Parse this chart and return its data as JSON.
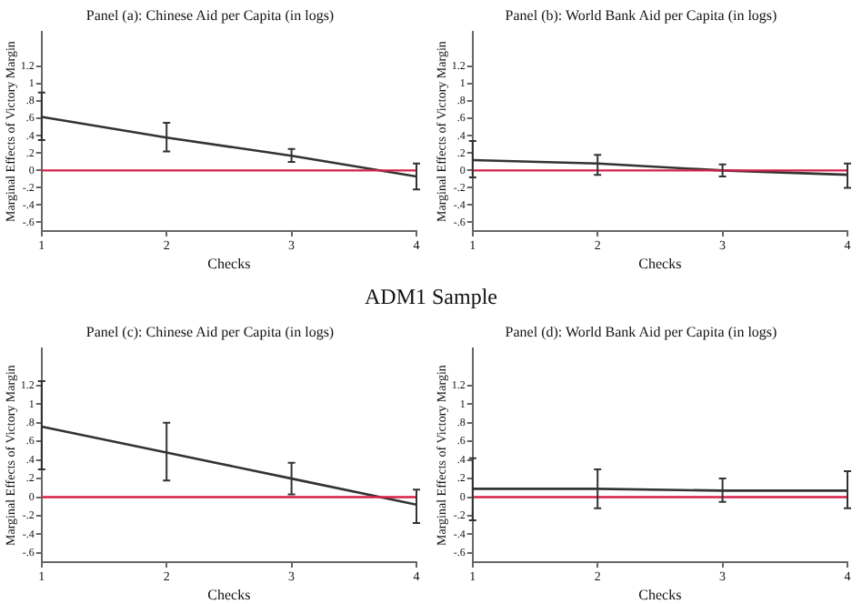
{
  "chart_data": [
    {
      "type": "line",
      "title": "Panel (a): Chinese Aid per Capita (in logs)",
      "xlabel": "Checks",
      "ylabel": "Marginal Effects of Victory Margin",
      "x": [
        1,
        2,
        3,
        4
      ],
      "xlim": [
        1,
        4
      ],
      "xticks": [
        1,
        2,
        3,
        4
      ],
      "ylim": [
        -0.7,
        1.6
      ],
      "yticks": [
        {
          "value": -0.6,
          "label": "-.6"
        },
        {
          "value": -0.4,
          "label": "-.4"
        },
        {
          "value": -0.2,
          "label": "-.2"
        },
        {
          "value": 0,
          "label": "0"
        },
        {
          "value": 0.2,
          "label": ".2"
        },
        {
          "value": 0.4,
          "label": ".4"
        },
        {
          "value": 0.6,
          "label": ".6"
        },
        {
          "value": 0.8,
          "label": ".8"
        },
        {
          "value": 1,
          "label": "1"
        },
        {
          "value": 1.2,
          "label": "1.2"
        }
      ],
      "series": [
        {
          "color": "#333333",
          "values": [
            0.62,
            0.38,
            0.17,
            -0.07
          ],
          "errors": [
            [
              0.35,
              0.9
            ],
            [
              0.22,
              0.55
            ],
            [
              0.1,
              0.25
            ],
            [
              -0.22,
              0.08
            ]
          ]
        }
      ],
      "ref_lines": [
        {
          "axis": "y",
          "value": 0,
          "color": "#d6204a"
        }
      ],
      "grid": false,
      "legend": false,
      "marker": "none"
    },
    {
      "type": "line",
      "title": "Panel (b): World Bank Aid per Capita (in logs)",
      "xlabel": "Checks",
      "ylabel": "Marginal Effects of Victory Margin",
      "x": [
        1,
        2,
        3,
        4
      ],
      "xlim": [
        1,
        4
      ],
      "xticks": [
        1,
        2,
        3,
        4
      ],
      "ylim": [
        -0.7,
        1.6
      ],
      "yticks": [
        {
          "value": -0.6,
          "label": "-.6"
        },
        {
          "value": -0.4,
          "label": "-.4"
        },
        {
          "value": -0.2,
          "label": "-.2"
        },
        {
          "value": 0,
          "label": "0"
        },
        {
          "value": 0.2,
          "label": ".2"
        },
        {
          "value": 0.4,
          "label": ".4"
        },
        {
          "value": 0.6,
          "label": ".6"
        },
        {
          "value": 0.8,
          "label": ".8"
        },
        {
          "value": 1,
          "label": "1"
        },
        {
          "value": 1.2,
          "label": "1.2"
        }
      ],
      "series": [
        {
          "color": "#333333",
          "values": [
            0.12,
            0.08,
            0.0,
            -0.05
          ],
          "errors": [
            [
              -0.08,
              0.34
            ],
            [
              -0.05,
              0.18
            ],
            [
              -0.07,
              0.07
            ],
            [
              -0.2,
              0.08
            ]
          ]
        }
      ],
      "ref_lines": [
        {
          "axis": "y",
          "value": 0,
          "color": "#d6204a"
        }
      ],
      "grid": false,
      "legend": false,
      "marker": "none"
    },
    {
      "type": "line",
      "title": "Panel (c): Chinese Aid per Capita (in logs)",
      "xlabel": "Checks",
      "ylabel": "Marginal Effects of Victory Margin",
      "annotations": [
        "ADM1 Sample"
      ],
      "x": [
        1,
        2,
        3,
        4
      ],
      "xlim": [
        1,
        4
      ],
      "xticks": [
        1,
        2,
        3,
        4
      ],
      "ylim": [
        -0.7,
        1.6
      ],
      "yticks": [
        {
          "value": -0.6,
          "label": "-.6"
        },
        {
          "value": -0.4,
          "label": "-.4"
        },
        {
          "value": -0.2,
          "label": "-.2"
        },
        {
          "value": 0,
          "label": "0"
        },
        {
          "value": 0.2,
          "label": ".2"
        },
        {
          "value": 0.4,
          "label": ".4"
        },
        {
          "value": 0.6,
          "label": ".6"
        },
        {
          "value": 0.8,
          "label": ".8"
        },
        {
          "value": 1,
          "label": "1"
        },
        {
          "value": 1.2,
          "label": "1.2"
        }
      ],
      "series": [
        {
          "color": "#333333",
          "values": [
            0.76,
            0.48,
            0.2,
            -0.08
          ],
          "errors": [
            [
              0.3,
              1.25
            ],
            [
              0.18,
              0.8
            ],
            [
              0.03,
              0.37
            ],
            [
              -0.28,
              0.08
            ]
          ]
        }
      ],
      "ref_lines": [
        {
          "axis": "y",
          "value": 0,
          "color": "#d6204a"
        }
      ],
      "grid": false,
      "legend": false,
      "marker": "none"
    },
    {
      "type": "line",
      "title": "Panel (d): World Bank Aid per Capita (in logs)",
      "xlabel": "Checks",
      "ylabel": "Marginal Effects of Victory Margin",
      "x": [
        1,
        2,
        3,
        4
      ],
      "xlim": [
        1,
        4
      ],
      "xticks": [
        1,
        2,
        3,
        4
      ],
      "ylim": [
        -0.7,
        1.6
      ],
      "yticks": [
        {
          "value": -0.6,
          "label": "-.6"
        },
        {
          "value": -0.4,
          "label": "-.4"
        },
        {
          "value": -0.2,
          "label": "-.2"
        },
        {
          "value": 0,
          "label": "0"
        },
        {
          "value": 0.2,
          "label": ".2"
        },
        {
          "value": 0.4,
          "label": ".4"
        },
        {
          "value": 0.6,
          "label": ".6"
        },
        {
          "value": 0.8,
          "label": ".8"
        },
        {
          "value": 1,
          "label": "1"
        },
        {
          "value": 1.2,
          "label": "1.2"
        }
      ],
      "series": [
        {
          "color": "#333333",
          "values": [
            0.09,
            0.09,
            0.07,
            0.07
          ],
          "errors": [
            [
              -0.25,
              0.42
            ],
            [
              -0.12,
              0.3
            ],
            [
              -0.05,
              0.2
            ],
            [
              -0.12,
              0.28
            ]
          ]
        }
      ],
      "ref_lines": [
        {
          "axis": "y",
          "value": 0,
          "color": "#d6204a"
        }
      ],
      "grid": false,
      "legend": false,
      "marker": "none"
    }
  ]
}
